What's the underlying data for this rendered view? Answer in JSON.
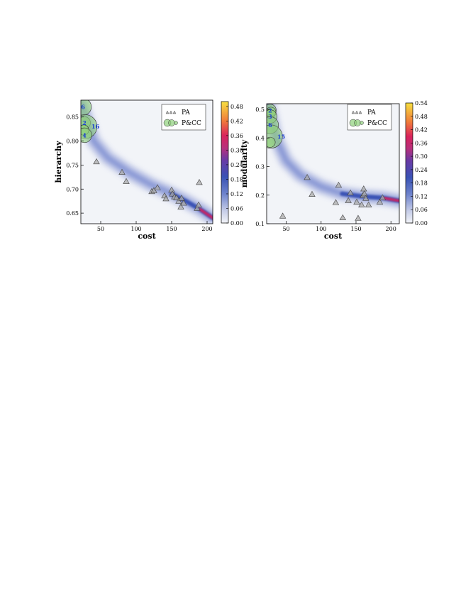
{
  "colors": {
    "background": "#f2f4f8",
    "density_low": "#f2f4f8",
    "density_mid": "#3a53b5",
    "density_high": "#d9235c",
    "density_top": "#f7d840",
    "triangle_fill": "#a9a9a9",
    "circle_fill": "#8fd07a",
    "annotation": "#1a3fd0"
  },
  "chart_data": [
    {
      "type": "scatter",
      "xlabel": "cost",
      "ylabel": "hierarchy",
      "xlim": [
        22,
        208
      ],
      "ylim": [
        0.628,
        0.885
      ],
      "xticks": [
        "50",
        "100",
        "150",
        "200"
      ],
      "xtick_values": [
        50,
        100,
        150,
        200
      ],
      "yticks": [
        "0.65",
        "0.70",
        "0.75",
        "0.80",
        "0.85"
      ],
      "ytick_values": [
        0.65,
        0.7,
        0.75,
        0.8,
        0.85
      ],
      "colorbar_ticks": [
        "0.00",
        "0.06",
        "0.12",
        "0.18",
        "0.24",
        "0.30",
        "0.36",
        "0.42",
        "0.48"
      ],
      "colorbar_max": 0.5,
      "legend": [
        "PA",
        "P&CC"
      ],
      "legend_position": "top-right",
      "grid": false,
      "density_curve": [
        [
          22,
          0.88
        ],
        [
          40,
          0.8
        ],
        [
          60,
          0.765
        ],
        [
          90,
          0.735
        ],
        [
          120,
          0.71
        ],
        [
          150,
          0.69
        ],
        [
          170,
          0.675
        ],
        [
          190,
          0.658
        ],
        [
          208,
          0.64
        ]
      ],
      "pa_points": [
        {
          "x": 44,
          "y": 0.757
        },
        {
          "x": 80,
          "y": 0.735
        },
        {
          "x": 86,
          "y": 0.716
        },
        {
          "x": 122,
          "y": 0.695
        },
        {
          "x": 125,
          "y": 0.697
        },
        {
          "x": 130,
          "y": 0.703
        },
        {
          "x": 140,
          "y": 0.686
        },
        {
          "x": 142,
          "y": 0.68
        },
        {
          "x": 150,
          "y": 0.698
        },
        {
          "x": 151,
          "y": 0.69
        },
        {
          "x": 154,
          "y": 0.684
        },
        {
          "x": 157,
          "y": 0.682
        },
        {
          "x": 160,
          "y": 0.675
        },
        {
          "x": 163,
          "y": 0.663
        },
        {
          "x": 164,
          "y": 0.681
        },
        {
          "x": 167,
          "y": 0.671
        },
        {
          "x": 186,
          "y": 0.66
        },
        {
          "x": 188,
          "y": 0.667
        },
        {
          "x": 189,
          "y": 0.714
        }
      ],
      "pcc_points": [
        {
          "x": 25,
          "y": 0.871,
          "count": 6,
          "label": "6"
        },
        {
          "x": 27,
          "y": 0.838,
          "count": 2,
          "label": "2"
        },
        {
          "x": 28,
          "y": 0.83,
          "count": 16,
          "label": "16"
        },
        {
          "x": 26,
          "y": 0.823,
          "count": 1,
          "label": ""
        },
        {
          "x": 27,
          "y": 0.812,
          "count": 4,
          "label": "4"
        }
      ]
    },
    {
      "type": "scatter",
      "xlabel": "cost",
      "ylabel": "modularity",
      "xlim": [
        22,
        212
      ],
      "ylim": [
        0.1,
        0.52
      ],
      "xticks": [
        "50",
        "100",
        "150",
        "200"
      ],
      "xtick_values": [
        50,
        100,
        150,
        200
      ],
      "yticks": [
        "0.1",
        "0.2",
        "0.3",
        "0.4",
        "0.5"
      ],
      "ytick_values": [
        0.1,
        0.2,
        0.3,
        0.4,
        0.5
      ],
      "colorbar_ticks": [
        "0.00",
        "0.06",
        "0.12",
        "0.18",
        "0.24",
        "0.30",
        "0.36",
        "0.42",
        "0.48",
        "0.54"
      ],
      "colorbar_max": 0.54,
      "legend": [
        "PA",
        "P&CC"
      ],
      "legend_position": "top-right",
      "grid": false,
      "density_curve": [
        [
          24,
          0.52
        ],
        [
          35,
          0.4
        ],
        [
          50,
          0.32
        ],
        [
          70,
          0.27
        ],
        [
          100,
          0.23
        ],
        [
          130,
          0.205
        ],
        [
          160,
          0.195
        ],
        [
          190,
          0.19
        ],
        [
          212,
          0.18
        ]
      ],
      "pa_points": [
        {
          "x": 45,
          "y": 0.127
        },
        {
          "x": 80,
          "y": 0.262
        },
        {
          "x": 87,
          "y": 0.203
        },
        {
          "x": 121,
          "y": 0.174
        },
        {
          "x": 125,
          "y": 0.235
        },
        {
          "x": 131,
          "y": 0.121
        },
        {
          "x": 139,
          "y": 0.181
        },
        {
          "x": 142,
          "y": 0.208
        },
        {
          "x": 151,
          "y": 0.176
        },
        {
          "x": 153,
          "y": 0.119
        },
        {
          "x": 158,
          "y": 0.166
        },
        {
          "x": 160,
          "y": 0.199
        },
        {
          "x": 161,
          "y": 0.222
        },
        {
          "x": 162,
          "y": 0.205
        },
        {
          "x": 164,
          "y": 0.189
        },
        {
          "x": 168,
          "y": 0.166
        },
        {
          "x": 184,
          "y": 0.176
        },
        {
          "x": 188,
          "y": 0.191
        }
      ],
      "pcc_points": [
        {
          "x": 27,
          "y": 0.497,
          "count": 2,
          "label": "2"
        },
        {
          "x": 28,
          "y": 0.49,
          "count": 1,
          "label": ""
        },
        {
          "x": 27,
          "y": 0.475,
          "count": 3,
          "label": "3"
        },
        {
          "x": 27,
          "y": 0.445,
          "count": 6,
          "label": "6"
        },
        {
          "x": 28,
          "y": 0.405,
          "count": 15,
          "label": "15"
        },
        {
          "x": 27,
          "y": 0.385,
          "count": 1,
          "label": ""
        }
      ]
    }
  ]
}
